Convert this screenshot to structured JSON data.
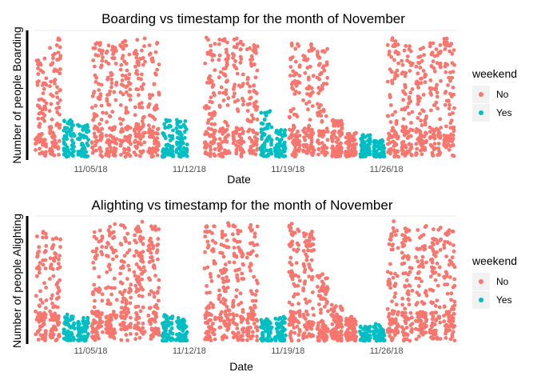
{
  "chart_data": [
    {
      "type": "scatter",
      "title": "Boarding vs timestamp for the month of November",
      "xlabel": "Date",
      "ylabel": "Number of people Boarding",
      "x_ticks": [
        "11/05/18",
        "11/12/18",
        "11/19/18",
        "11/26/18"
      ],
      "x_tick_days": [
        5,
        12,
        19,
        26
      ],
      "xlim_days": [
        1,
        30.9
      ],
      "ylim": [
        0,
        1
      ],
      "y_ticks_shown": false,
      "legend": {
        "title": "weekend",
        "position": "right",
        "entries": [
          "No",
          "Yes"
        ]
      },
      "colors": {
        "No": "#F8766D",
        "Yes": "#00BFC4"
      },
      "series": [
        {
          "name": "No",
          "days": [
            1,
            2,
            5,
            6,
            7,
            8,
            9,
            13,
            14,
            15,
            16,
            19,
            20,
            21,
            22,
            23,
            26,
            27,
            28,
            29,
            30
          ],
          "daily_peak": [
            0.8,
            0.98,
            0.95,
            0.92,
            0.97,
            0.98,
            0.93,
            0.97,
            0.96,
            0.96,
            0.91,
            0.92,
            0.93,
            0.88,
            0.3,
            0.2,
            0.97,
            0.9,
            0.9,
            0.95,
            0.96
          ]
        },
        {
          "name": "Yes",
          "days": [
            3,
            4,
            10,
            11,
            17,
            18,
            24,
            25
          ],
          "daily_peak": [
            0.3,
            0.28,
            0.3,
            0.3,
            0.38,
            0.22,
            0.18,
            0.14
          ]
        }
      ]
    },
    {
      "type": "scatter",
      "title": "Alighting vs timestamp for the month of November",
      "xlabel": "Date",
      "ylabel": "Number of people Alighting",
      "x_ticks": [
        "11/05/18",
        "11/12/18",
        "11/19/18",
        "11/26/18"
      ],
      "x_tick_days": [
        5,
        12,
        19,
        26
      ],
      "xlim_days": [
        1,
        30.9
      ],
      "ylim": [
        0,
        1
      ],
      "y_ticks_shown": false,
      "legend": {
        "title": "weekend",
        "position": "right",
        "entries": [
          "No",
          "Yes"
        ]
      },
      "colors": {
        "No": "#F8766D",
        "Yes": "#00BFC4"
      },
      "series": [
        {
          "name": "No",
          "days": [
            1,
            2,
            5,
            6,
            7,
            8,
            9,
            13,
            14,
            15,
            16,
            19,
            20,
            21,
            22,
            23,
            26,
            27,
            28,
            29,
            30
          ],
          "daily_peak": [
            0.9,
            0.85,
            0.97,
            0.97,
            0.96,
            0.98,
            0.95,
            0.96,
            0.97,
            0.95,
            0.97,
            0.97,
            0.9,
            0.55,
            0.3,
            0.2,
            0.99,
            0.95,
            0.95,
            0.97,
            0.92
          ]
        },
        {
          "name": "Yes",
          "days": [
            3,
            4,
            10,
            11,
            17,
            18,
            24,
            25
          ],
          "daily_peak": [
            0.22,
            0.2,
            0.22,
            0.2,
            0.18,
            0.2,
            0.12,
            0.14
          ]
        }
      ]
    }
  ]
}
